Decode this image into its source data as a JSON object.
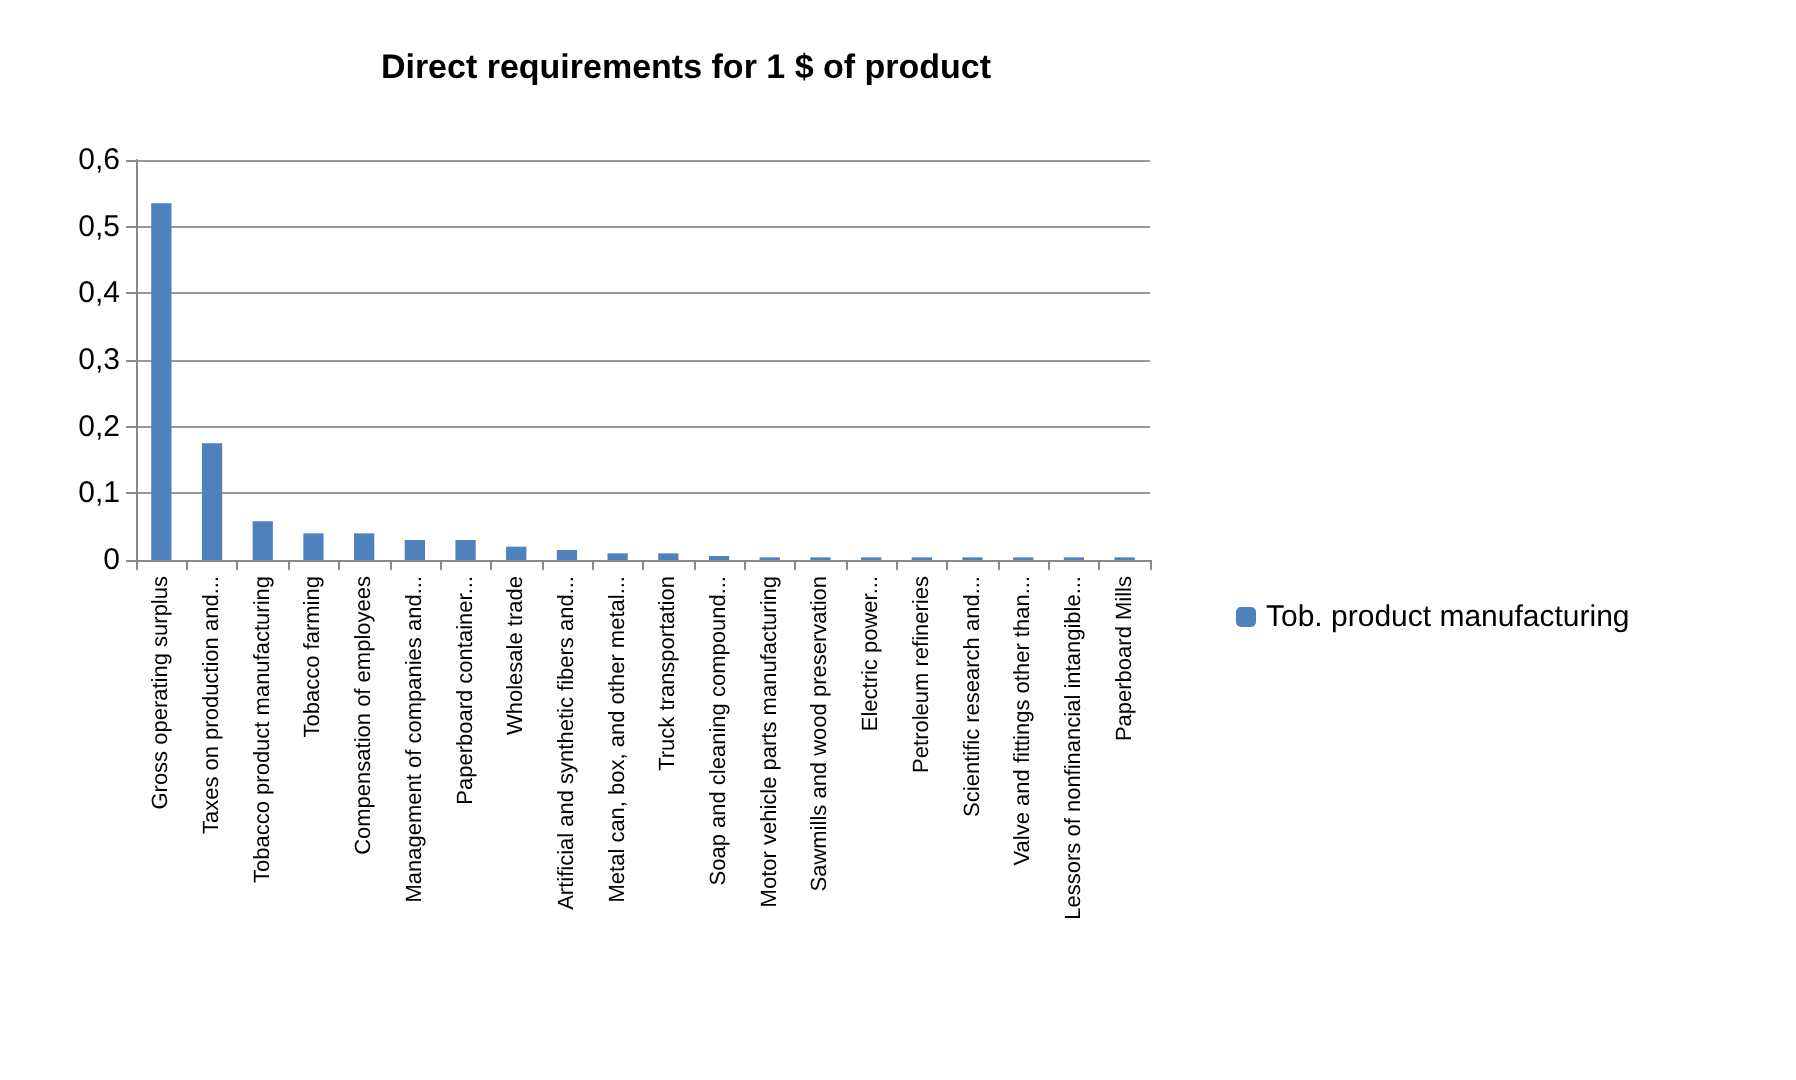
{
  "chart_data": {
    "type": "bar",
    "title": "Direct requirements for 1 $ of product",
    "categories": [
      "Gross operating surplus",
      "Taxes on production and...",
      "Tobacco product manufacturing",
      "Tobacco farming",
      "Compensation of employees",
      "Management of companies and...",
      "Paperboard container...",
      "Wholesale trade",
      "Artificial and synthetic fibers and...",
      "Metal can, box, and other metal...",
      "Truck transportation",
      "Soap and cleaning compound...",
      "Motor vehicle parts manufacturing",
      "Sawmills and wood preservation",
      "Electric power...",
      "Petroleum refineries",
      "Scientific research and...",
      "Valve and fittings other than...",
      "Lessors of nonfinancial intangible...",
      "Paperboard Mills"
    ],
    "series": [
      {
        "name": "Tob. product manufacturing",
        "color": "#4f81bd",
        "values": [
          0.535,
          0.175,
          0.058,
          0.04,
          0.04,
          0.03,
          0.03,
          0.02,
          0.015,
          0.01,
          0.01,
          0.006,
          0.004,
          0.004,
          0.004,
          0.004,
          0.004,
          0.004,
          0.004,
          0.004
        ]
      }
    ],
    "ylim": [
      0,
      0.6
    ],
    "yticks": [
      {
        "value": 0,
        "label": "0"
      },
      {
        "value": 0.1,
        "label": "0,1"
      },
      {
        "value": 0.2,
        "label": "0,2"
      },
      {
        "value": 0.3,
        "label": "0,3"
      },
      {
        "value": 0.4,
        "label": "0,4"
      },
      {
        "value": 0.5,
        "label": "0,5"
      },
      {
        "value": 0.6,
        "label": "0,6"
      }
    ],
    "grid": "y",
    "legend": "right"
  }
}
